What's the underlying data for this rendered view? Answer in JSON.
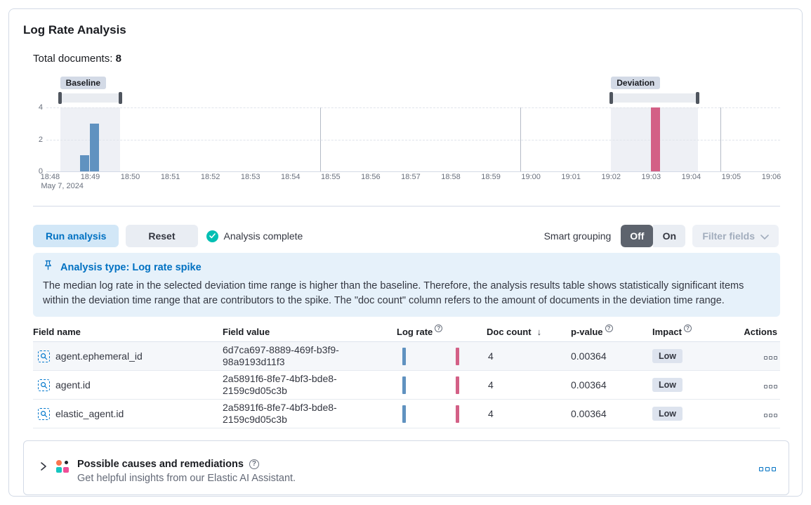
{
  "panel": {
    "title": "Log Rate Analysis"
  },
  "summary": {
    "label": "Total documents:",
    "value": "8"
  },
  "chart_data": {
    "type": "bar",
    "x_ticks": [
      "18:48",
      "18:49",
      "18:50",
      "18:51",
      "18:52",
      "18:53",
      "18:54",
      "18:55",
      "18:56",
      "18:57",
      "18:58",
      "18:59",
      "19:00",
      "19:01",
      "19:02",
      "19:03",
      "19:04",
      "19:05",
      "19:06"
    ],
    "x_axis_date": "May 7, 2024",
    "y_ticks": [
      0,
      2,
      4
    ],
    "ylim": [
      0,
      4
    ],
    "bars": [
      {
        "time": "18:48:45",
        "value": 1,
        "series": "baseline"
      },
      {
        "time": "18:49:00",
        "value": 3,
        "series": "baseline"
      },
      {
        "time": "19:03:00",
        "value": 4,
        "series": "deviation"
      }
    ],
    "series_colors": {
      "baseline": "#6092C0",
      "deviation": "#D36086"
    },
    "brushes": [
      {
        "name": "baseline",
        "label": "Baseline",
        "range": [
          "18:48:15",
          "18:49:45"
        ]
      },
      {
        "name": "deviation",
        "label": "Deviation",
        "range": [
          "19:02:00",
          "19:04:10"
        ]
      }
    ],
    "vertical_gridlines": [
      "18:55",
      "19:00",
      "19:05"
    ]
  },
  "toolbar": {
    "run_label": "Run analysis",
    "reset_label": "Reset",
    "status_label": "Analysis complete",
    "smart_grouping_label": "Smart grouping",
    "off_label": "Off",
    "on_label": "On",
    "filter_fields_label": "Filter fields"
  },
  "callout": {
    "title": "Analysis type: Log rate spike",
    "body": "The median log rate in the selected deviation time range is higher than the baseline. Therefore, the analysis results table shows statistically significant items within the deviation time range that are contributors to the spike. The \"doc count\" column refers to the amount of documents in the deviation time range."
  },
  "table": {
    "headers": {
      "field_name": "Field name",
      "field_value": "Field value",
      "log_rate": "Log rate",
      "doc_count": "Doc count",
      "p_value": "p-value",
      "impact": "Impact",
      "actions": "Actions"
    },
    "rows": [
      {
        "field_name": "agent.ephemeral_id",
        "field_value": "6d7ca697-8889-469f-b3f9-98a9193d11f3",
        "doc_count": "4",
        "p_value": "0.00364",
        "impact": "Low"
      },
      {
        "field_name": "agent.id",
        "field_value": "2a5891f6-8fe7-4bf3-bde8-2159c9d05c3b",
        "doc_count": "4",
        "p_value": "0.00364",
        "impact": "Low"
      },
      {
        "field_name": "elastic_agent.id",
        "field_value": "2a5891f6-8fe7-4bf3-bde8-2159c9d05c3b",
        "doc_count": "4",
        "p_value": "0.00364",
        "impact": "Low"
      }
    ]
  },
  "insights": {
    "title": "Possible causes and remediations",
    "subtitle": "Get helpful insights from our Elastic AI Assistant."
  },
  "colors": {
    "primary": "#0071C2",
    "success": "#00BFB3",
    "baseline_bar": "#6092C0",
    "deviation_bar": "#D36086",
    "callout_bg": "#E6F1FA"
  }
}
